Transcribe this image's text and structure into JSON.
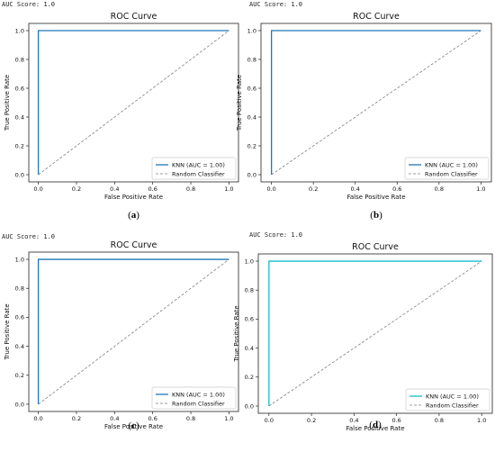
{
  "panels": [
    {
      "auc_score_text": "AUC Score:  1.0",
      "caption_letter": "a"
    },
    {
      "auc_score_text": "AUC Score:  1.0",
      "caption_letter": "b"
    },
    {
      "auc_score_text": "AUC Score:  1.0",
      "caption_letter": "c"
    },
    {
      "auc_score_text": "AUC Score:  1.0",
      "caption_letter": "d"
    }
  ],
  "chart_data": [
    {
      "type": "line",
      "title": "ROC Curve",
      "xlabel": "False Positive Rate",
      "ylabel": "True Positive Rate",
      "xlim": [
        -0.05,
        1.05
      ],
      "ylim": [
        -0.05,
        1.05
      ],
      "x_ticks": [
        "0.0",
        "0.2",
        "0.4",
        "0.6",
        "0.8",
        "1.0"
      ],
      "y_ticks": [
        "0.0",
        "0.2",
        "0.4",
        "0.6",
        "0.8",
        "1.0"
      ],
      "legend_position": "lower-right",
      "series": [
        {
          "name": "KNN (AUC = 1.00)",
          "x": [
            0,
            0,
            1
          ],
          "y": [
            0,
            1,
            1
          ],
          "color": "#1f77b4",
          "style": "solid"
        },
        {
          "name": "Random Classifier",
          "x": [
            0,
            1
          ],
          "y": [
            0,
            1
          ],
          "color": "#7f7f7f",
          "style": "dashed"
        }
      ]
    },
    {
      "type": "line",
      "title": "ROC Curve",
      "xlabel": "False Positive Rate",
      "ylabel": "True Positive Rate",
      "xlim": [
        -0.05,
        1.05
      ],
      "ylim": [
        -0.05,
        1.05
      ],
      "x_ticks": [
        "0.0",
        "0.2",
        "0.4",
        "0.6",
        "0.8",
        "1.0"
      ],
      "y_ticks": [
        "0.0",
        "0.2",
        "0.4",
        "0.6",
        "0.8",
        "1.0"
      ],
      "legend_position": "lower-right",
      "series": [
        {
          "name": "KNN (AUC = 1.00)",
          "x": [
            0,
            0,
            1
          ],
          "y": [
            0,
            1,
            1
          ],
          "color": "#1f77b4",
          "style": "solid"
        },
        {
          "name": "Random Classifier",
          "x": [
            0,
            1
          ],
          "y": [
            0,
            1
          ],
          "color": "#7f7f7f",
          "style": "dashed"
        }
      ]
    },
    {
      "type": "line",
      "title": "ROC Curve",
      "xlabel": "False Positive Rate",
      "ylabel": "True Positive Rate",
      "xlim": [
        -0.05,
        1.05
      ],
      "ylim": [
        -0.05,
        1.05
      ],
      "x_ticks": [
        "0.0",
        "0.2",
        "0.4",
        "0.6",
        "0.8",
        "1.0"
      ],
      "y_ticks": [
        "0.0",
        "0.2",
        "0.4",
        "0.6",
        "0.8",
        "1.0"
      ],
      "legend_position": "lower-right",
      "series": [
        {
          "name": "KNN (AUC = 1.00)",
          "x": [
            0,
            0,
            1
          ],
          "y": [
            0,
            1,
            1
          ],
          "color": "#1f77b4",
          "style": "solid"
        },
        {
          "name": "Random Classifier",
          "x": [
            0,
            1
          ],
          "y": [
            0,
            1
          ],
          "color": "#7f7f7f",
          "style": "dashed"
        }
      ]
    },
    {
      "type": "line",
      "title": "ROC Curve",
      "xlabel": "False Positive Rate",
      "ylabel": "True Positive Rate",
      "xlim": [
        -0.05,
        1.05
      ],
      "ylim": [
        -0.05,
        1.05
      ],
      "x_ticks": [
        "0.0",
        "0.2",
        "0.4",
        "0.6",
        "0.8",
        "1.0"
      ],
      "y_ticks": [
        "0.0",
        "0.2",
        "0.4",
        "0.6",
        "0.8",
        "1.0"
      ],
      "legend_position": "lower-right",
      "series": [
        {
          "name": "KNN (AUC = 1.00)",
          "x": [
            0,
            0,
            1
          ],
          "y": [
            0,
            1,
            1
          ],
          "color": "#17becf",
          "style": "solid"
        },
        {
          "name": "Random Classifier",
          "x": [
            0,
            1
          ],
          "y": [
            0,
            1
          ],
          "color": "#7f7f7f",
          "style": "dashed"
        }
      ]
    }
  ]
}
